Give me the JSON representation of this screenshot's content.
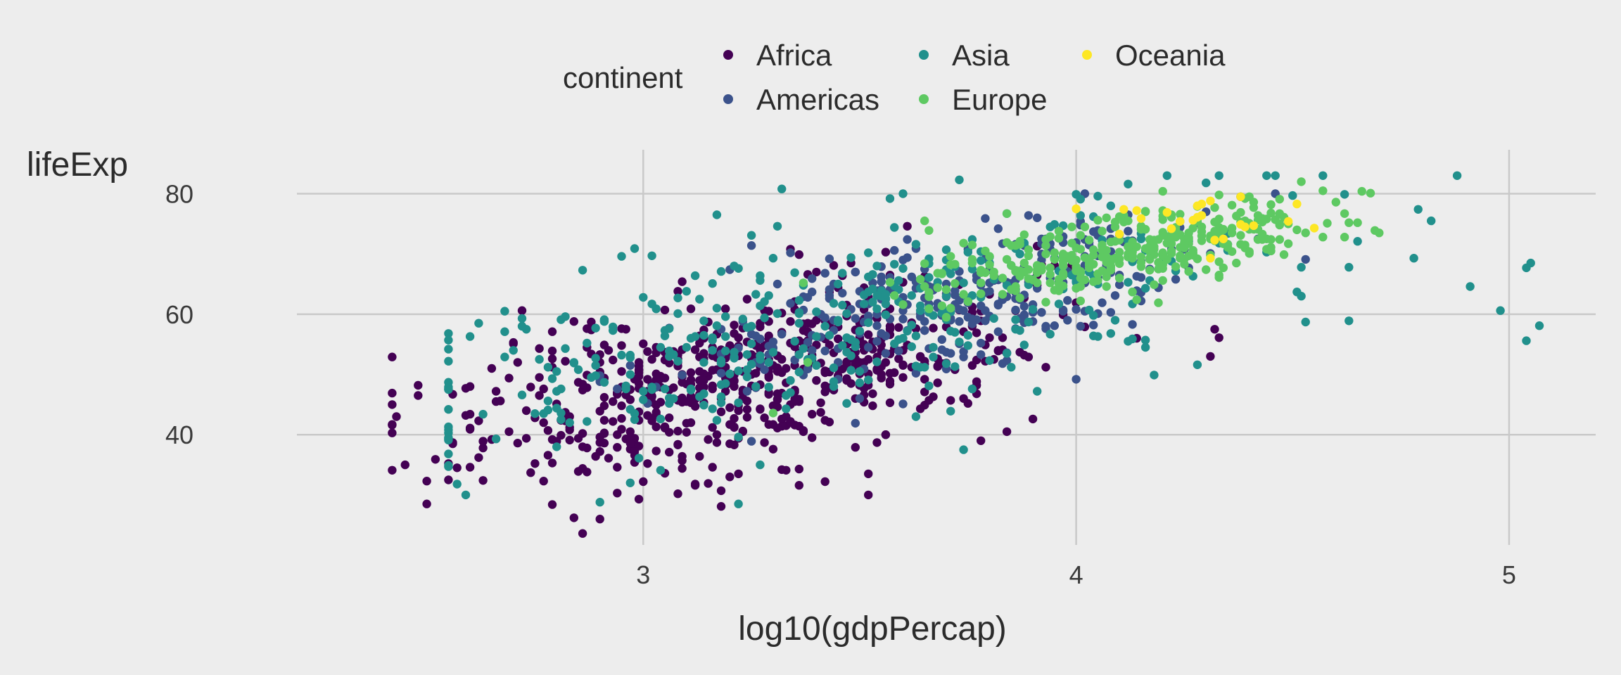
{
  "chart_data": {
    "type": "scatter",
    "title": "",
    "xlabel": "log10(gdpPercap)",
    "ylabel": "lifeExp",
    "xlim": [
      2.2,
      5.2
    ],
    "ylim": [
      21.7,
      87.3
    ],
    "x_ticks": [
      3,
      4,
      5
    ],
    "y_ticks": [
      40,
      60,
      80
    ],
    "grid": true,
    "legend": {
      "title": "continent",
      "placement": "top"
    },
    "series": [
      {
        "name": "Africa",
        "color": "#440154",
        "points": []
      },
      {
        "name": "Americas",
        "color": "#3b528b",
        "points": []
      },
      {
        "name": "Asia",
        "color": "#21908c",
        "points": []
      },
      {
        "name": "Europe",
        "color": "#5ec962",
        "points": []
      },
      {
        "name": "Oceania",
        "color": "#fde725",
        "points": []
      }
    ]
  }
}
